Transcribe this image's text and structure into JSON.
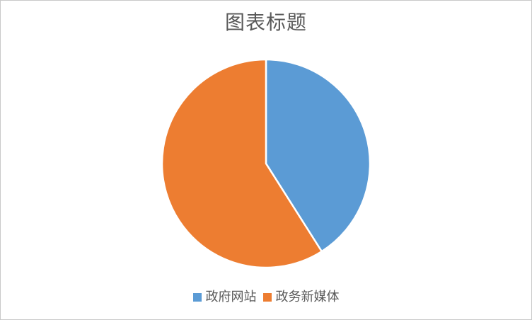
{
  "page": {
    "background_color": "#ffffff",
    "frame_border_color": "#c9c9c9"
  },
  "chart": {
    "title_color": "#595959",
    "legend_text_color": "#595959"
  },
  "chart_data": {
    "type": "pie",
    "title": "图表标题",
    "categories": [
      "政府网站",
      "政务新媒体"
    ],
    "values": [
      41,
      59
    ],
    "colors": [
      "#5B9BD5",
      "#ED7D31"
    ],
    "start_angle_deg": 0,
    "direction": "clockwise",
    "slice_separator_color": "#ffffff",
    "legend_position": "bottom",
    "legend": [
      {
        "label": "政府网站",
        "swatch_color": "#5B9BD5"
      },
      {
        "label": "政务新媒体",
        "swatch_color": "#ED7D31"
      }
    ]
  }
}
